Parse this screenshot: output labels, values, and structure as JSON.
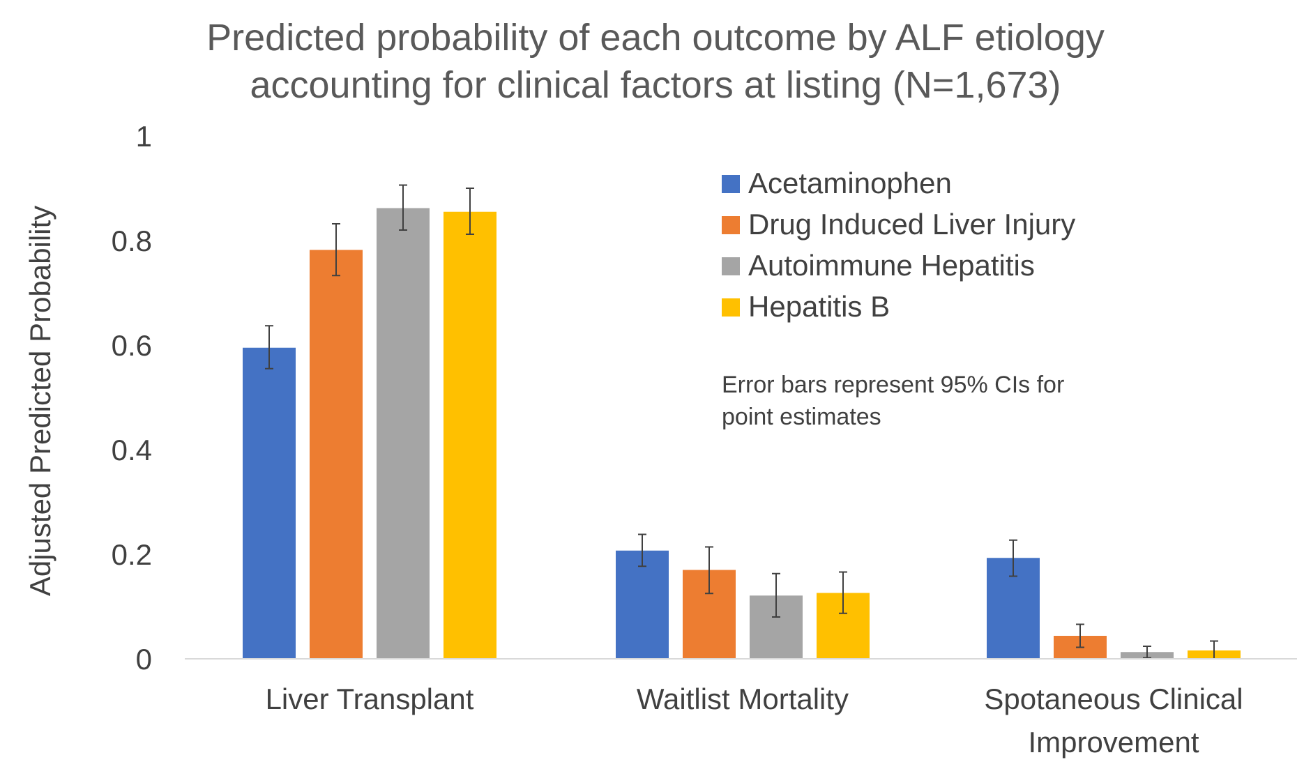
{
  "chart_data": {
    "type": "bar",
    "title_lines": [
      "Predicted probability of each outcome by ALF etiology",
      "accounting for clinical factors at listing (N=1,673)"
    ],
    "ylabel": "Adjusted Predicted Probability",
    "ylim": [
      0,
      1
    ],
    "yticks": [
      {
        "value": 0,
        "label": "0"
      },
      {
        "value": 0.2,
        "label": "0.2"
      },
      {
        "value": 0.4,
        "label": "0.4"
      },
      {
        "value": 0.6,
        "label": "0.6"
      },
      {
        "value": 0.8,
        "label": "0.8"
      },
      {
        "value": 1,
        "label": "1"
      }
    ],
    "categories": [
      [
        "Liver Transplant"
      ],
      [
        "Waitlist Mortality"
      ],
      [
        "Spotaneous Clinical",
        "Improvement"
      ]
    ],
    "series": [
      {
        "name": "Acetaminophen",
        "color": "#4472C4",
        "values": [
          0.595,
          0.207,
          0.193
        ],
        "ci_low": [
          0.555,
          0.177,
          0.158
        ],
        "ci_high": [
          0.637,
          0.238,
          0.227
        ]
      },
      {
        "name": "Drug Induced Liver Injury",
        "color": "#ED7D31",
        "values": [
          0.782,
          0.17,
          0.044
        ],
        "ci_low": [
          0.733,
          0.125,
          0.022
        ],
        "ci_high": [
          0.832,
          0.214,
          0.066
        ]
      },
      {
        "name": "Autoimmune Hepatitis",
        "color": "#A5A5A5",
        "values": [
          0.862,
          0.121,
          0.013
        ],
        "ci_low": [
          0.82,
          0.08,
          0.002
        ],
        "ci_high": [
          0.906,
          0.163,
          0.024
        ]
      },
      {
        "name": "Hepatitis B",
        "color": "#FFC000",
        "values": [
          0.855,
          0.126,
          0.016
        ],
        "ci_low": [
          0.812,
          0.087,
          0.0
        ],
        "ci_high": [
          0.9,
          0.166,
          0.034
        ]
      }
    ],
    "legend": {
      "placement": "top-right"
    },
    "note_lines": [
      "Error bars represent 95% CIs for",
      "point estimates"
    ],
    "grid": false
  }
}
